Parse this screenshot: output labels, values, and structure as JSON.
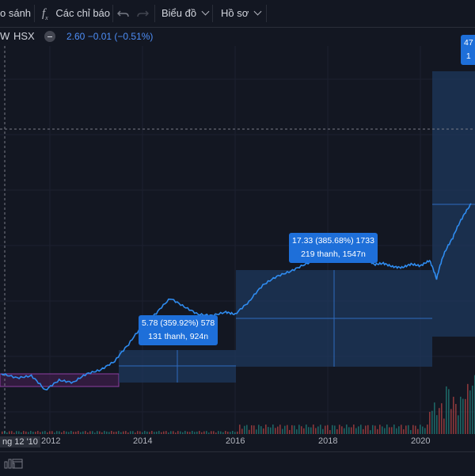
{
  "toolbar": {
    "compare_label": "o sánh",
    "indicators_label": "Các chỉ báo",
    "chart_label": "Biểu đồ",
    "profile_label": "Hồ sơ"
  },
  "legend": {
    "symbol_fragment": "W",
    "exchange": "HSX",
    "values": "2.60  −0.01 (−0.51%)"
  },
  "annotations": [
    {
      "line1": "5.78 (359.92%) 578",
      "line2": "131 thanh, 924n"
    },
    {
      "line1": "17.33 (385.68%) 1733",
      "line2": "219 thanh, 1547n"
    },
    {
      "line1": "47",
      "line2": "1"
    }
  ],
  "x_axis": {
    "first_label": "ng 12 '10",
    "ticks": [
      "2012",
      "2014",
      "2016",
      "2018",
      "2020"
    ]
  },
  "colors": {
    "background": "#131722",
    "line": "#2f8cf0",
    "measure_box": "#1e3a5f",
    "measure_border": "#2f6bbf",
    "volume_up": "#26a69a",
    "volume_down": "#ef5350",
    "purple_box": "#7b2a8a"
  },
  "icons": [
    "undo-icon",
    "redo-icon",
    "fx-icon",
    "chevron-down-icon",
    "minus-icon",
    "bar-chart-icon",
    "calendar-icon"
  ],
  "chart_data": {
    "type": "line",
    "xlabel": "",
    "ylabel": "",
    "x": [
      2010.95,
      2011.3,
      2011.6,
      2011.9,
      2012.2,
      2012.5,
      2012.8,
      2013.1,
      2013.4,
      2013.7,
      2014.0,
      2014.3,
      2014.6,
      2014.9,
      2015.2,
      2015.5,
      2015.8,
      2016.0,
      2016.3,
      2016.6,
      2016.9,
      2017.2,
      2017.5,
      2017.8,
      2018.0,
      2018.2,
      2018.4,
      2018.6,
      2018.8,
      2019.0,
      2019.2,
      2019.4,
      2019.6,
      2019.8,
      2020.0,
      2020.2,
      2020.35,
      2020.5,
      2020.7,
      2020.9,
      2021.1
    ],
    "y": [
      1.2,
      1.1,
      1.15,
      0.85,
      1.05,
      1.0,
      1.2,
      1.3,
      1.55,
      2.2,
      3.2,
      4.2,
      5.7,
      4.8,
      4.1,
      4.0,
      4.3,
      4.1,
      5.3,
      7.5,
      9.0,
      10.0,
      11.5,
      13.0,
      16.5,
      17.8,
      15.3,
      15.8,
      13.5,
      11.5,
      11.8,
      11.0,
      10.8,
      11.6,
      11.2,
      12.5,
      8.5,
      14.0,
      20.0,
      30.0,
      40.5
    ]
  }
}
